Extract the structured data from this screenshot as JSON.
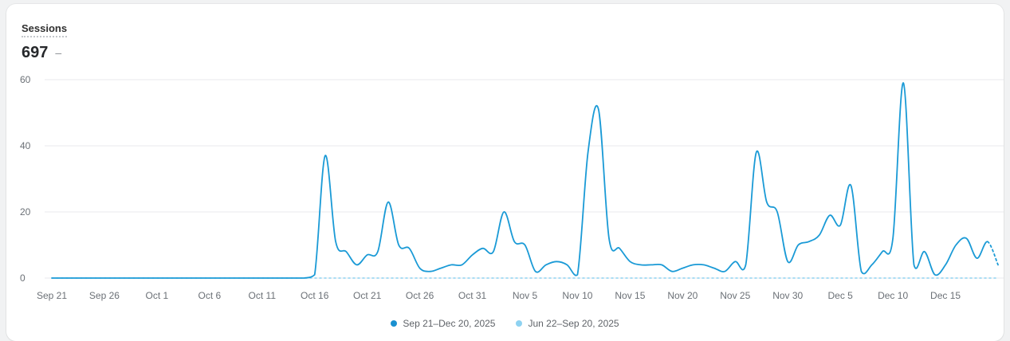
{
  "header": {
    "metric_label": "Sessions",
    "value": "697",
    "change": "–"
  },
  "legend": {
    "items": [
      {
        "label": "Sep 21–Dec 20, 2025",
        "color": "#1a90d0"
      },
      {
        "label": "Jun 22–Sep 20, 2025",
        "color": "#8ed2f1"
      }
    ]
  },
  "colors": {
    "primary_line": "#1a9ad6",
    "comparison_line": "#8ed2f1",
    "grid": "#e9eaec",
    "tick_text": "#6b7076"
  },
  "chart_data": {
    "type": "line",
    "title": "Sessions",
    "xlabel": "",
    "ylabel": "",
    "ylim": [
      0,
      60
    ],
    "yticks": [
      0,
      20,
      40,
      60
    ],
    "grid": true,
    "legend_position": "bottom-center",
    "x_range": "Sep 21, 2025 – Dec 20, 2025",
    "tick_labels": [
      "Sep 21",
      "Sep 26",
      "Oct 1",
      "Oct 6",
      "Oct 11",
      "Oct 16",
      "Oct 21",
      "Oct 26",
      "Oct 31",
      "Nov 5",
      "Nov 10",
      "Nov 15",
      "Nov 20",
      "Nov 25",
      "Nov 30",
      "Dec 5",
      "Dec 10",
      "Dec 15"
    ],
    "tick_indices": [
      0,
      5,
      10,
      15,
      20,
      25,
      30,
      35,
      40,
      45,
      50,
      55,
      60,
      65,
      70,
      75,
      80,
      85
    ],
    "series": [
      {
        "name": "Sep 21–Dec 20, 2025",
        "total": 697,
        "style": "solid",
        "last_segment_style": "dashed",
        "values": [
          0,
          0,
          0,
          0,
          0,
          0,
          0,
          0,
          0,
          0,
          0,
          0,
          0,
          0,
          0,
          0,
          0,
          0,
          0,
          0,
          0,
          0,
          0,
          0,
          0,
          1,
          37,
          11,
          8,
          4,
          7,
          8,
          23,
          10,
          9,
          3,
          2,
          3,
          4,
          4,
          7,
          9,
          8,
          20,
          11,
          10,
          2,
          4,
          5,
          4,
          1,
          38,
          51,
          12,
          9,
          5,
          4,
          4,
          4,
          2,
          3,
          4,
          4,
          3,
          2,
          5,
          4,
          38,
          23,
          20,
          5,
          10,
          11,
          13,
          19,
          16,
          28,
          2,
          4,
          8,
          12,
          59,
          4,
          8,
          1,
          4,
          10,
          12,
          6,
          11,
          4
        ]
      },
      {
        "name": "Jun 22–Sep 20, 2025",
        "style": "dashed",
        "constant_value": 0
      }
    ]
  }
}
